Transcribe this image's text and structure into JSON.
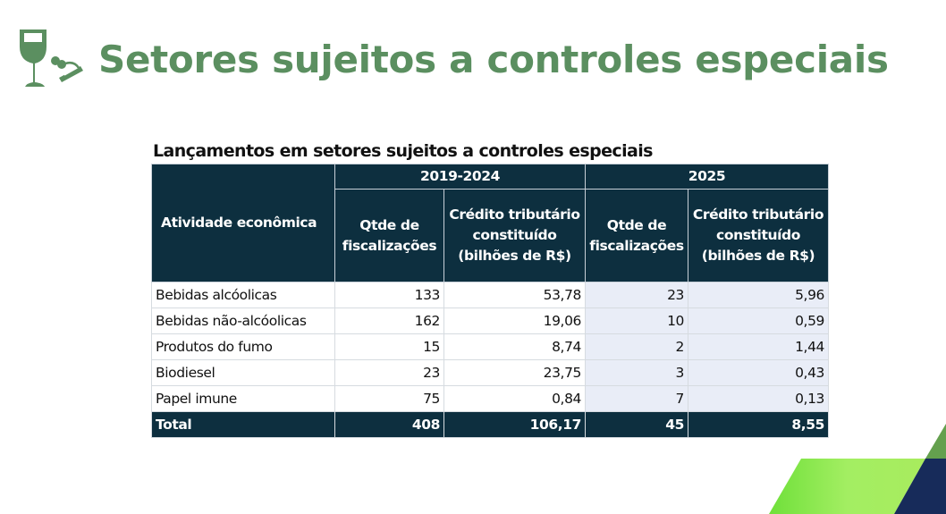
{
  "slide": {
    "title": "Setores sujeitos a controles especiais",
    "icon": "wine-glass-and-cigarette-icon",
    "accent": "#5b8f60"
  },
  "table": {
    "caption": "Lançamentos em setores sujeitos a controles especiais",
    "header": {
      "activity": "Atividade econômica",
      "period1": "2019-2024",
      "period2": "2025",
      "qty": "Qtde de fiscalizações",
      "credit": "Crédito tributário constituído (bilhões de R$)"
    },
    "rows": [
      {
        "activity": "Bebidas alcóolicas",
        "q1": "133",
        "c1": "53,78",
        "q2": "23",
        "c2": "5,96"
      },
      {
        "activity": "Bebidas não-alcóolicas",
        "q1": "162",
        "c1": "19,06",
        "q2": "10",
        "c2": "0,59"
      },
      {
        "activity": "Produtos do fumo",
        "q1": "15",
        "c1": "8,74",
        "q2": "2",
        "c2": "1,44"
      },
      {
        "activity": "Biodiesel",
        "q1": "23",
        "c1": "23,75",
        "q2": "3",
        "c2": "0,43"
      },
      {
        "activity": "Papel imune",
        "q1": "75",
        "c1": "0,84",
        "q2": "7",
        "c2": "0,13"
      }
    ],
    "total": {
      "activity": "Total",
      "q1": "408",
      "c1": "106,17",
      "q2": "45",
      "c2": "8,55"
    }
  }
}
